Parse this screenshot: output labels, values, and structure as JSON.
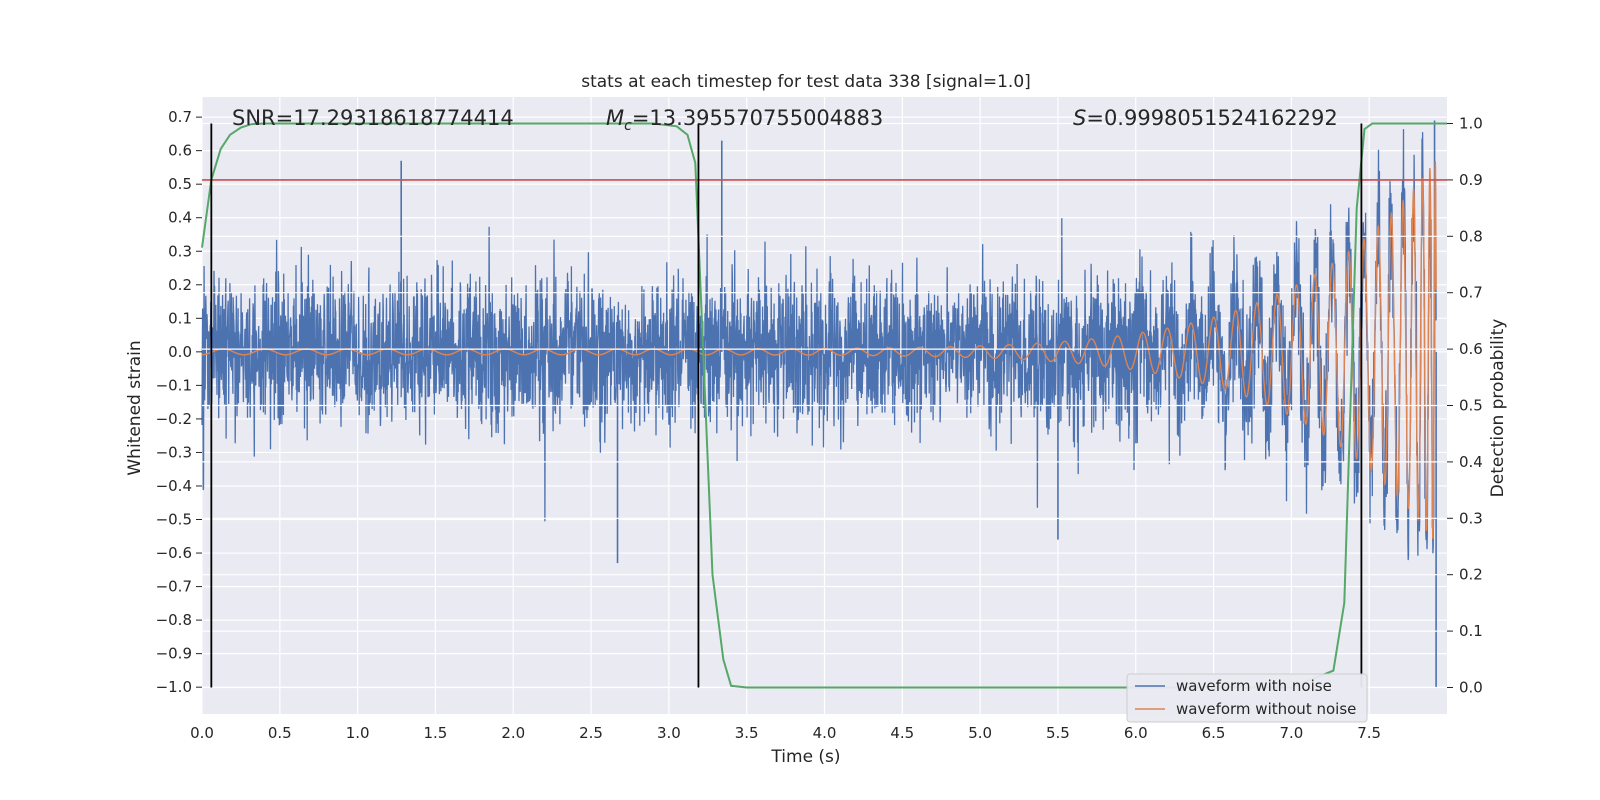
{
  "chart_data": {
    "type": "line",
    "title": "stats at each timestep for test data 338 [signal=1.0]",
    "xlabel": "Time (s)",
    "ylabel_left": "Whitened strain",
    "ylabel_right": "Detection probability",
    "xlim": [
      0.0,
      8.0
    ],
    "ylim_left": [
      -1.08,
      0.76
    ],
    "ylim_right": [
      -0.047,
      1.047
    ],
    "x_ticks": [
      "0.0",
      "0.5",
      "1.0",
      "1.5",
      "2.0",
      "2.5",
      "3.0",
      "3.5",
      "4.0",
      "4.5",
      "5.0",
      "5.5",
      "6.0",
      "6.5",
      "7.0",
      "7.5"
    ],
    "y_left_ticks": [
      "0.7",
      "0.6",
      "0.5",
      "0.4",
      "0.3",
      "0.2",
      "0.1",
      "0.0",
      "−0.1",
      "−0.2",
      "−0.3",
      "−0.4",
      "−0.5",
      "−0.6",
      "−0.7",
      "−0.8",
      "−0.9",
      "−1.0"
    ],
    "y_right_ticks": [
      "1.0",
      "0.9",
      "0.8",
      "0.7",
      "0.6",
      "0.5",
      "0.4",
      "0.3",
      "0.2",
      "0.1",
      "0.0"
    ],
    "annotations": {
      "snr": "SNR=17.29318618774414",
      "mc_symbol": "M",
      "mc_sub": "c",
      "mc_value": "=13.395570755004883",
      "s_symbol": "S",
      "s_value": "=0.9998051524162292"
    },
    "threshold_probability": 0.9,
    "vertical_lines_s": [
      0.06,
      3.19,
      7.45
    ],
    "series": [
      {
        "name": "waveform with noise",
        "color": "#4c72b0",
        "noise_amplitude": 0.2,
        "peak_spikes": [
          0.57,
          0.63,
          -0.63,
          -0.56,
          0.69,
          -1.0
        ]
      },
      {
        "name": "waveform without noise",
        "color": "#dd8452",
        "start_amplitude": 0.008,
        "end_amplitude": 0.57,
        "end_time": 7.93
      },
      {
        "name": "detection probability",
        "color": "#55a868",
        "t": [
          0.0,
          0.06,
          0.12,
          0.18,
          0.25,
          0.32,
          0.4,
          0.5,
          1.0,
          2.0,
          2.9,
          3.05,
          3.12,
          3.17,
          3.22,
          3.28,
          3.35,
          3.4,
          3.5,
          5.0,
          7.0,
          7.27,
          7.34,
          7.38,
          7.42,
          7.47,
          7.52,
          7.6,
          7.8,
          8.0
        ],
        "p": [
          0.78,
          0.9,
          0.955,
          0.98,
          0.993,
          0.999,
          1.0,
          1.0,
          1.0,
          1.0,
          1.0,
          0.995,
          0.98,
          0.93,
          0.6,
          0.2,
          0.05,
          0.003,
          0.0,
          0.0,
          0.0,
          0.03,
          0.15,
          0.5,
          0.85,
          0.99,
          1.0,
          1.0,
          1.0,
          1.0
        ]
      }
    ],
    "colors": {
      "threshold": "#c44e52",
      "vline": "#000000",
      "axes_bg": "#eaeaf2",
      "grid": "#ffffff"
    },
    "legend": {
      "position": "lower-right",
      "entries": [
        "waveform with noise",
        "waveform without noise"
      ]
    }
  }
}
